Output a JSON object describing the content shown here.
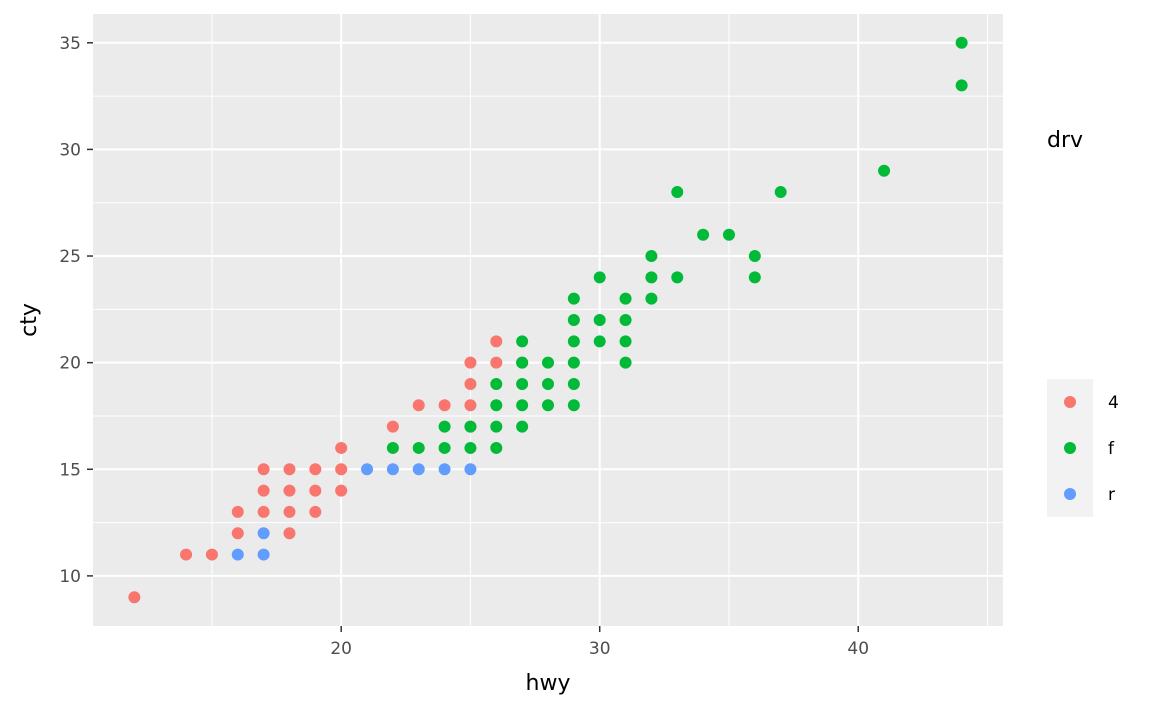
{
  "chart_data": {
    "type": "scatter",
    "title": "",
    "xlabel": "hwy",
    "ylabel": "cty",
    "xlim": [
      10.4,
      45.6
    ],
    "ylim": [
      7.65,
      36.35
    ],
    "x_ticks": [
      20,
      30,
      40
    ],
    "y_ticks": [
      10,
      15,
      20,
      25,
      30,
      35
    ],
    "x_tick_labels": [
      "20",
      "30",
      "40"
    ],
    "y_tick_labels": [
      "10",
      "15",
      "20",
      "25",
      "30",
      "35"
    ],
    "grid": true,
    "legend": {
      "title": "drv",
      "placement": "right"
    },
    "series": [
      {
        "name": "4",
        "color": "#F8766D",
        "points": [
          [
            12,
            9
          ],
          [
            14,
            11
          ],
          [
            15,
            11
          ],
          [
            16,
            12
          ],
          [
            16,
            13
          ],
          [
            17,
            13
          ],
          [
            17,
            14
          ],
          [
            17,
            15
          ],
          [
            18,
            12
          ],
          [
            18,
            13
          ],
          [
            18,
            14
          ],
          [
            18,
            15
          ],
          [
            19,
            13
          ],
          [
            19,
            14
          ],
          [
            19,
            15
          ],
          [
            20,
            14
          ],
          [
            20,
            15
          ],
          [
            20,
            16
          ],
          [
            22,
            17
          ],
          [
            23,
            18
          ],
          [
            24,
            18
          ],
          [
            25,
            17
          ],
          [
            25,
            18
          ],
          [
            25,
            19
          ],
          [
            25,
            20
          ],
          [
            26,
            20
          ],
          [
            26,
            21
          ],
          [
            27,
            20
          ]
        ]
      },
      {
        "name": "f",
        "color": "#00BA38",
        "points": [
          [
            22,
            16
          ],
          [
            23,
            16
          ],
          [
            24,
            16
          ],
          [
            24,
            17
          ],
          [
            25,
            16
          ],
          [
            25,
            17
          ],
          [
            26,
            16
          ],
          [
            26,
            17
          ],
          [
            26,
            18
          ],
          [
            26,
            19
          ],
          [
            27,
            17
          ],
          [
            27,
            18
          ],
          [
            27,
            19
          ],
          [
            27,
            20
          ],
          [
            27,
            21
          ],
          [
            28,
            18
          ],
          [
            28,
            19
          ],
          [
            28,
            20
          ],
          [
            29,
            18
          ],
          [
            29,
            19
          ],
          [
            29,
            20
          ],
          [
            29,
            21
          ],
          [
            29,
            22
          ],
          [
            29,
            23
          ],
          [
            30,
            21
          ],
          [
            30,
            22
          ],
          [
            30,
            24
          ],
          [
            31,
            20
          ],
          [
            31,
            21
          ],
          [
            31,
            22
          ],
          [
            31,
            23
          ],
          [
            32,
            23
          ],
          [
            32,
            24
          ],
          [
            32,
            25
          ],
          [
            33,
            24
          ],
          [
            33,
            28
          ],
          [
            34,
            26
          ],
          [
            35,
            26
          ],
          [
            36,
            24
          ],
          [
            36,
            25
          ],
          [
            37,
            28
          ],
          [
            41,
            29
          ],
          [
            44,
            33
          ],
          [
            44,
            35
          ]
        ]
      },
      {
        "name": "r",
        "color": "#619CFF",
        "points": [
          [
            16,
            11
          ],
          [
            17,
            11
          ],
          [
            17,
            12
          ],
          [
            21,
            15
          ],
          [
            22,
            15
          ],
          [
            23,
            15
          ],
          [
            24,
            15
          ],
          [
            25,
            15
          ]
        ]
      }
    ]
  }
}
